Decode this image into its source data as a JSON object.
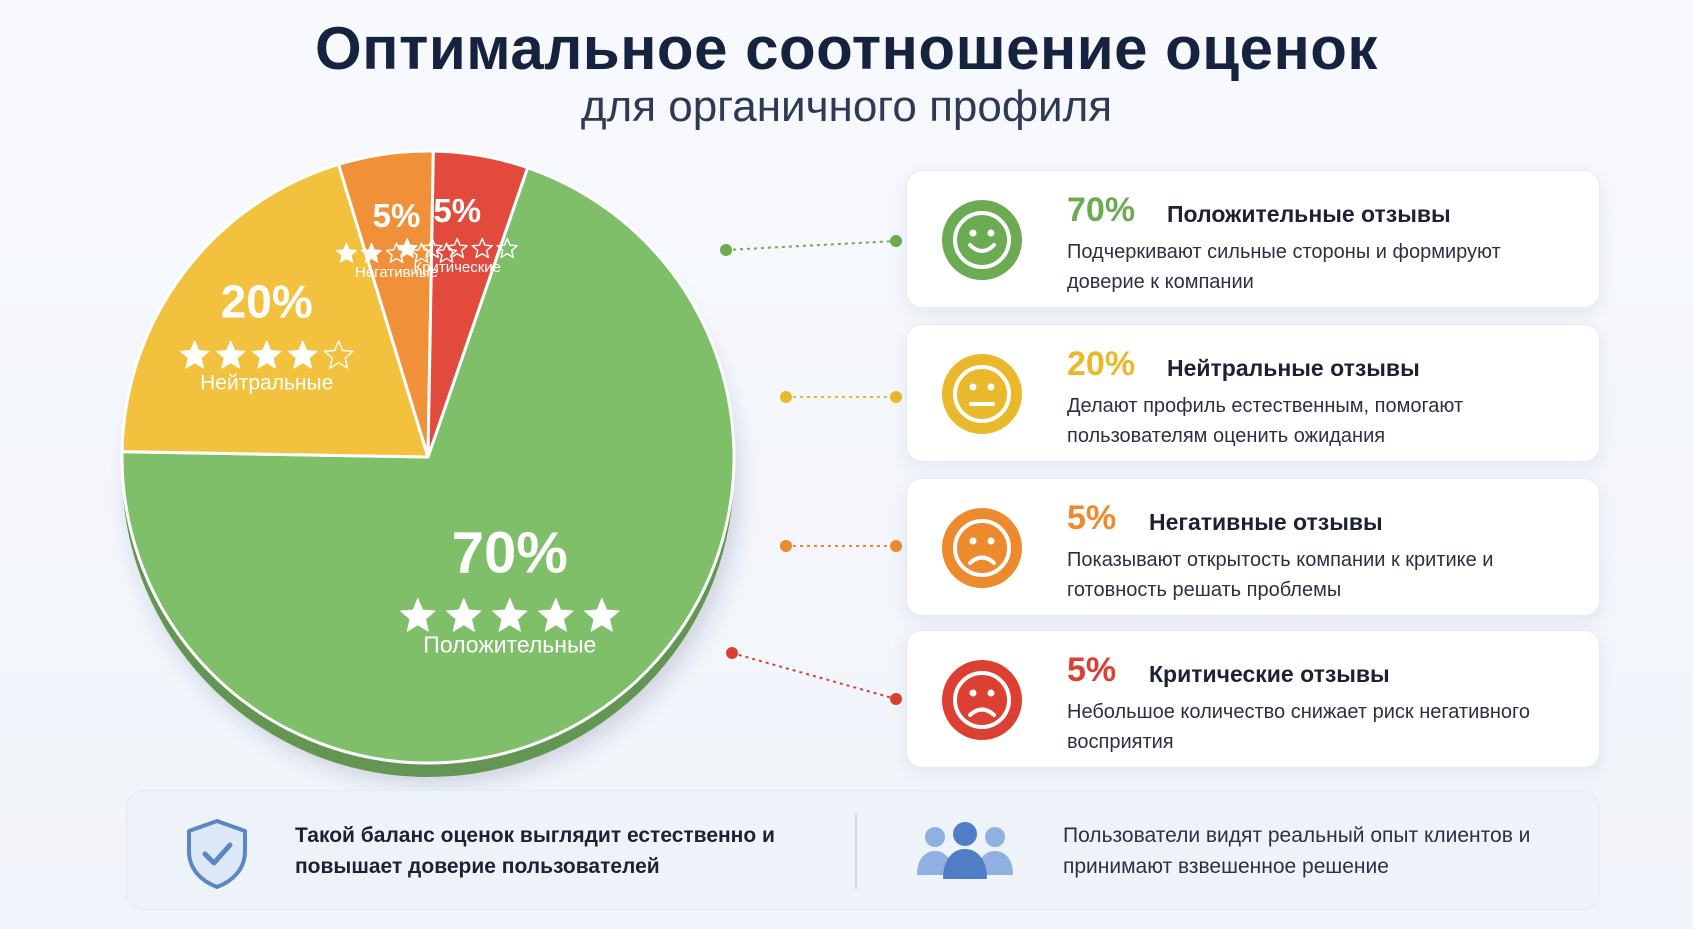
{
  "header": {
    "title": "Оптимальное соотношение оценок",
    "subtitle": "для органичного профиля"
  },
  "chart_data": {
    "type": "pie",
    "slices": [
      {
        "label": "Положительные",
        "value": 70,
        "pct_text": "70%",
        "stars": 5,
        "color": "#7fbf6a"
      },
      {
        "label": "Нейтральные",
        "value": 20,
        "pct_text": "20%",
        "stars": 4,
        "color": "#f2c23e"
      },
      {
        "label": "Негативные",
        "value": 5,
        "pct_text": "5%",
        "stars": 2,
        "color": "#f0913a"
      },
      {
        "label": "Критические",
        "value": 5,
        "pct_text": "5%",
        "stars": 1,
        "color": "#e14a3c"
      }
    ]
  },
  "cards": [
    {
      "pct": "70%",
      "title": "Положительные отзывы",
      "desc": "Подчеркивают сильные стороны и формируют доверие к компании",
      "color": "#6cab52",
      "face": "smile-face-icon"
    },
    {
      "pct": "20%",
      "title": "Нейтральные отзывы",
      "desc": "Делают профиль естественным, помогают пользователям оценить ожидания",
      "color": "#eab92b",
      "face": "neutral-face-icon"
    },
    {
      "pct": "5%",
      "title": "Негативные отзывы",
      "desc": "Показывают открытость компании к критике и готовность решать проблемы",
      "color": "#ee8a2e",
      "face": "sad-face-icon"
    },
    {
      "pct": "5%",
      "title": "Критические отзывы",
      "desc": "Небольшое количество снижает риск негативного восприятия",
      "color": "#dc4033",
      "face": "sad-face-icon"
    }
  ],
  "footer": {
    "left_text": "Такой баланс оценок выглядит естественно и повышает доверие пользователей",
    "right_text": "Пользователи видят реальный опыт клиентов и принимают взвешенное решение",
    "left_icon": "shield-check-icon",
    "right_icon": "users-group-icon"
  }
}
